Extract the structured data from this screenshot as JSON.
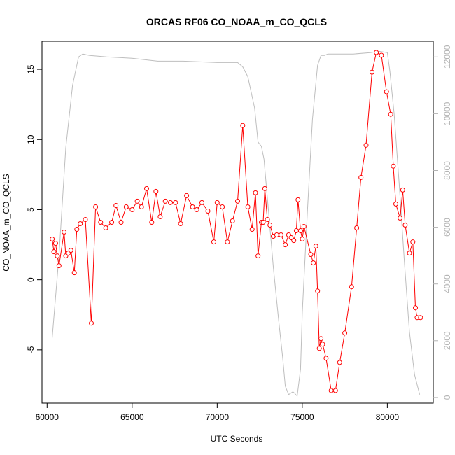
{
  "chart_data": {
    "type": "line",
    "title": "ORCAS RF06 CO_NOAA_m_CO_QCLS",
    "xlabel": "UTC Seconds",
    "ylabel": "CO_NOAA_m_CO_QCLS",
    "xlim": [
      59700,
      82700
    ],
    "ylim": [
      -8.8,
      17.0
    ],
    "y2lim": [
      -200,
      12550
    ],
    "x_ticks": [
      60000,
      65000,
      70000,
      75000,
      80000
    ],
    "x_tick_labels": [
      "60000",
      "65000",
      "70000",
      "75000",
      "80000"
    ],
    "y_ticks": [
      -5,
      0,
      5,
      10,
      15
    ],
    "y_tick_labels": [
      "-5",
      "0",
      "5",
      "10",
      "15"
    ],
    "y2_ticks": [
      0,
      2000,
      4000,
      6000,
      8000,
      10000,
      12000
    ],
    "y2_tick_labels": [
      "0",
      "2000",
      "4000",
      "6000",
      "8000",
      "10000",
      "12000"
    ],
    "grid": false,
    "series": [
      {
        "color": "#ff0000",
        "axis": "left",
        "markers": true,
        "x": [
          60300,
          60400,
          60500,
          60600,
          60700,
          61000,
          61100,
          61250,
          61400,
          61600,
          61750,
          61950,
          62250,
          62600,
          62850,
          63150,
          63450,
          63800,
          64050,
          64350,
          64650,
          65000,
          65300,
          65550,
          65850,
          66150,
          66400,
          66650,
          66950,
          67250,
          67550,
          67850,
          68200,
          68550,
          68800,
          69100,
          69450,
          69800,
          70000,
          70300,
          70600,
          70900,
          71200,
          71500,
          71800,
          72050,
          72250,
          72400,
          72600,
          72700,
          72800,
          72950,
          73100,
          73300,
          73500,
          73750,
          74000,
          74200,
          74350,
          74500,
          74650,
          74750,
          74900,
          75000,
          75100,
          75500,
          75650,
          75800,
          75900,
          76000,
          76100,
          76200,
          76400,
          76700,
          76950,
          77200,
          77500,
          77900,
          78200,
          78450,
          78750,
          79100,
          79350,
          79650,
          79950,
          80200,
          80350,
          80500,
          80750,
          80900,
          81050,
          81300,
          81500,
          81650,
          81750,
          81950
        ],
        "y": [
          2.9,
          2.0,
          2.6,
          1.7,
          1.0,
          3.4,
          1.7,
          1.9,
          2.1,
          0.5,
          3.6,
          4.0,
          4.3,
          -3.1,
          5.2,
          4.1,
          3.7,
          4.1,
          5.3,
          4.1,
          5.2,
          5.0,
          5.6,
          5.2,
          6.5,
          4.1,
          6.3,
          4.5,
          5.6,
          5.5,
          5.5,
          4.0,
          6.0,
          5.2,
          5.0,
          5.5,
          4.9,
          2.7,
          5.5,
          5.2,
          2.7,
          4.2,
          5.6,
          11.0,
          5.2,
          3.6,
          6.2,
          1.7,
          4.1,
          4.1,
          6.5,
          4.3,
          3.9,
          3.1,
          3.2,
          3.2,
          2.5,
          3.2,
          3.0,
          2.8,
          3.5,
          5.7,
          3.5,
          2.9,
          3.8,
          1.8,
          1.2,
          2.4,
          -0.8,
          -4.9,
          -4.2,
          -4.6,
          -5.6,
          -7.9,
          -7.9,
          -5.9,
          -3.8,
          -0.5,
          3.7,
          7.3,
          9.6,
          14.8,
          16.2,
          16.0,
          13.4,
          11.8,
          8.1,
          5.4,
          4.4,
          6.4,
          3.9,
          1.9,
          2.7,
          -2.0,
          -2.7,
          -2.7
        ]
      },
      {
        "color": "#bebebe",
        "axis": "right",
        "markers": false,
        "x": [
          60300,
          60700,
          61100,
          61500,
          61850,
          62100,
          62500,
          63500,
          65000,
          66500,
          68000,
          70000,
          71200,
          71500,
          71800,
          72200,
          72400,
          72600,
          72750,
          73000,
          73300,
          73600,
          73850,
          74000,
          74200,
          74450,
          74550,
          74700,
          74900,
          75000,
          75300,
          75600,
          75900,
          76100,
          76300,
          76500,
          77000,
          78000,
          79000,
          79500,
          80000,
          80150,
          80400,
          80700,
          81000,
          81300,
          81600,
          81900
        ],
        "y": [
          2100,
          5000,
          8800,
          11000,
          12000,
          12100,
          12050,
          12000,
          11950,
          11850,
          11850,
          11800,
          11800,
          11650,
          11300,
          10200,
          9000,
          8850,
          8400,
          6700,
          4600,
          2800,
          1400,
          400,
          100,
          200,
          150,
          50,
          1000,
          3000,
          6500,
          9800,
          11700,
          12050,
          12050,
          12100,
          12100,
          12100,
          12150,
          12200,
          12150,
          11500,
          10000,
          7500,
          4800,
          2300,
          800,
          100
        ]
      }
    ]
  }
}
